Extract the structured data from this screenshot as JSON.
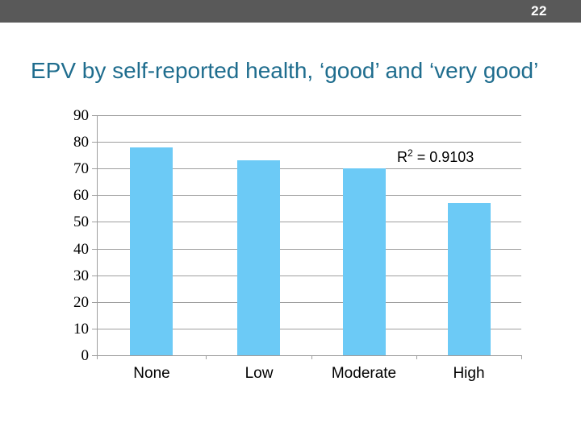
{
  "header": {
    "page_number": "22",
    "bg_color": "#595959",
    "text_color": "#ffffff"
  },
  "title": {
    "text": "EPV by self-reported health, ‘good’ and ‘very good’",
    "color": "#1F6D8E"
  },
  "chart_data": {
    "type": "bar",
    "categories": [
      "None",
      "Low",
      "Moderate",
      "High"
    ],
    "values": [
      78,
      73,
      70,
      57
    ],
    "title": "",
    "xlabel": "",
    "ylabel": "",
    "ylim": [
      0,
      90
    ],
    "ytick_step": 10,
    "ytick_labels": [
      "0",
      "10",
      "20",
      "30",
      "40",
      "50",
      "60",
      "70",
      "80",
      "90"
    ],
    "grid": true,
    "legend": "none",
    "bar_color": "#6CCAF6",
    "grid_color": "#9E9E9E",
    "annotation": {
      "base": "R",
      "sup": "2",
      "rest": " = 0.9103"
    }
  }
}
